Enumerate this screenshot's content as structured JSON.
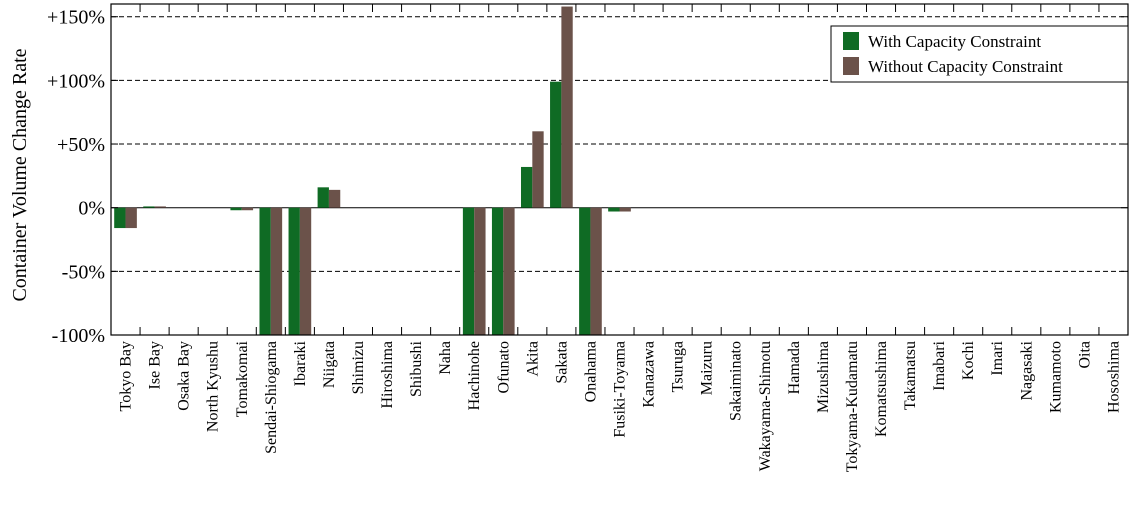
{
  "chart_data": {
    "type": "bar",
    "title": "",
    "xlabel": "",
    "ylabel": "Container Volume Change Rate",
    "ylim": [
      -100,
      160
    ],
    "yticks": [
      -100,
      -50,
      0,
      50,
      100,
      150
    ],
    "ytick_labels": [
      "-100%",
      "-50%",
      "0%",
      "+50%",
      "+100%",
      "+150%"
    ],
    "grid": "horizontal dashed",
    "legend_position": "top-right",
    "categories": [
      "Tokyo Bay",
      "Ise Bay",
      "Osaka Bay",
      "North Kyushu",
      "Tomakomai",
      "Sendai-Shiogama",
      "Ibaraki",
      "Niigata",
      "Shimizu",
      "Hiroshima",
      "Shibushi",
      "Naha",
      "Hachinohe",
      "Ofunato",
      "Akita",
      "Sakata",
      "Onahama",
      "Fusiki-Toyama",
      "Kanazawa",
      "Tsuruga",
      "Maizuru",
      "Sakaiminato",
      "Wakayama-Shimotu",
      "Hamada",
      "Mizushima",
      "Tokyama-Kudamatu",
      "Komatsushima",
      "Takamatsu",
      "Imabari",
      "Kochi",
      "Imari",
      "Nagasaki",
      "Kumamoto",
      "Oita",
      "Hososhima"
    ],
    "series": [
      {
        "name": "With Capacity Constraint",
        "color": "#0f6b24",
        "values": [
          -16,
          1,
          0,
          0,
          -2,
          -100,
          -100,
          16,
          0,
          0,
          0,
          0,
          -100,
          -100,
          32,
          99,
          -100,
          -3,
          0,
          0,
          0,
          0,
          0,
          0,
          0,
          0,
          0,
          0,
          0,
          0,
          0,
          0,
          0,
          0,
          0
        ]
      },
      {
        "name": "Without Capacity Constraint",
        "color": "#6b524a",
        "values": [
          -16,
          1,
          0,
          0,
          -2,
          -100,
          -100,
          14,
          0,
          0,
          0,
          0,
          -100,
          -100,
          60,
          158,
          -100,
          -3,
          0,
          0,
          0,
          0,
          0,
          0,
          0,
          0,
          0,
          0,
          0,
          0,
          0,
          0,
          0,
          0,
          0
        ]
      }
    ]
  }
}
